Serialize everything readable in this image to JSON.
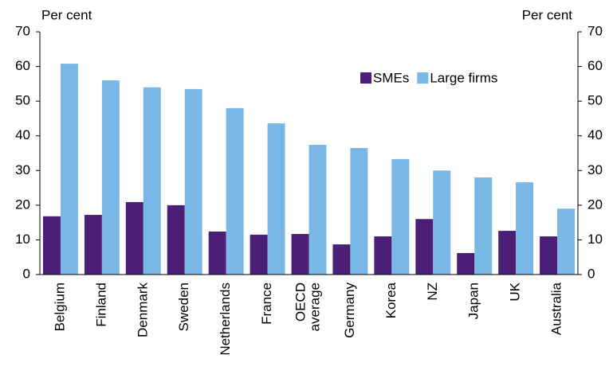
{
  "chart_data": {
    "type": "bar",
    "ylabel": "Per cent",
    "y2label": "Per cent",
    "categories": [
      "Belgium",
      "Finland",
      "Denmark",
      "Sweden",
      "Netherlands",
      "France",
      "OECD average",
      "Germany",
      "Korea",
      "NZ",
      "Japan",
      "UK",
      "Australia"
    ],
    "series": [
      {
        "name": "SMEs",
        "color": "#4b1f77",
        "values": [
          16.8,
          17.2,
          20.9,
          20,
          12.4,
          11.5,
          11.7,
          8.7,
          11,
          16,
          6.2,
          12.6,
          11
        ]
      },
      {
        "name": "Large firms",
        "color": "#79b8e6",
        "values": [
          60.8,
          56,
          54,
          53.5,
          48,
          43.6,
          37.4,
          36.5,
          33.3,
          30,
          28,
          26.6,
          19
        ]
      }
    ],
    "ylim": [
      0,
      70
    ],
    "yticks": [
      0,
      10,
      20,
      30,
      40,
      50,
      60,
      70
    ],
    "y2lim": [
      0,
      70
    ],
    "y2ticks": [
      0,
      10,
      20,
      30,
      40,
      50,
      60,
      70
    ],
    "legend": "upper right",
    "grid": false
  }
}
